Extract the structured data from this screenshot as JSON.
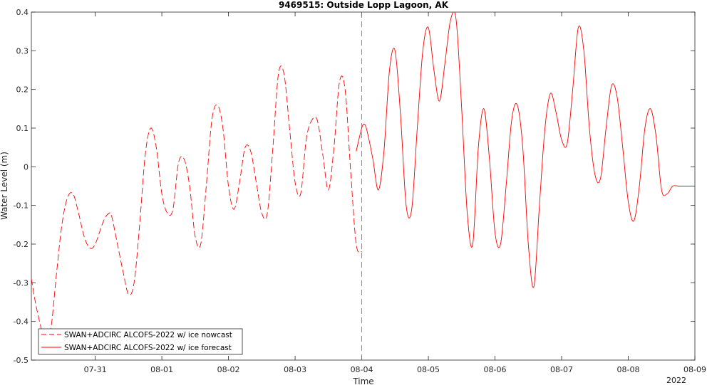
{
  "chart_data": {
    "type": "line",
    "title": "9469515: Outside Lopp Lagoon, AK",
    "xlabel": "Time",
    "ylabel": "Water Level (m)",
    "year_label": "2022",
    "xlim": [
      "07-30 01:00",
      "08-09 00:00"
    ],
    "ylim": [
      -0.5,
      0.4
    ],
    "yticks": [
      "-0.5",
      "-0.4",
      "-0.3",
      "-0.2",
      "-0.1",
      "0",
      "0.1",
      "0.2",
      "0.3",
      "0.4"
    ],
    "xticks": [
      "07-31",
      "08-01",
      "08-02",
      "08-03",
      "08-04",
      "08-05",
      "08-06",
      "08-07",
      "08-08",
      "08-09"
    ],
    "nowcast_end": "08-04",
    "grid": false,
    "legend_position": "bottom-left",
    "series": [
      {
        "name": "SWAN+ADCIRC ALCOFS-2022 w/ ice nowcast",
        "color": "#ff0000",
        "style": "dashed",
        "x": [
          "07-30 01:00",
          "07-30 03:00",
          "07-30 06:00",
          "07-30 08:00",
          "07-30 10:00",
          "07-30 12:00",
          "07-30 14:00",
          "07-30 16:00",
          "07-30 18:00",
          "07-30 20:00",
          "07-30 22:00",
          "07-31 00:00",
          "07-31 03:00",
          "07-31 05:00",
          "07-31 06:00",
          "07-31 08:00",
          "07-31 10:00",
          "07-31 12:00",
          "07-31 14:00",
          "07-31 16:00",
          "07-31 18:00",
          "07-31 20:00",
          "07-31 22:00",
          "08-01 00:00",
          "08-01 02:00",
          "08-01 04:00",
          "08-01 06:00",
          "08-01 08:00",
          "08-01 10:00",
          "08-01 12:00",
          "08-01 14:00",
          "08-01 16:00",
          "08-01 18:00",
          "08-01 20:00",
          "08-01 22:00",
          "08-02 00:00",
          "08-02 02:00",
          "08-02 04:00",
          "08-02 06:00",
          "08-02 08:00",
          "08-02 10:00",
          "08-02 12:00",
          "08-02 14:00",
          "08-02 16:00",
          "08-02 18:00",
          "08-02 20:00",
          "08-02 22:00",
          "08-03 00:00",
          "08-03 02:00",
          "08-03 04:00",
          "08-03 06:00",
          "08-03 08:00",
          "08-03 10:00",
          "08-03 12:00",
          "08-03 14:00",
          "08-03 16:00",
          "08-03 18:00",
          "08-03 20:00",
          "08-03 22:00",
          "08-04 00:00"
        ],
        "y": [
          -0.29,
          -0.37,
          -0.45,
          -0.42,
          -0.28,
          -0.15,
          -0.08,
          -0.07,
          -0.12,
          -0.18,
          -0.21,
          -0.2,
          -0.14,
          -0.12,
          -0.13,
          -0.2,
          -0.27,
          -0.33,
          -0.3,
          -0.15,
          0.03,
          0.1,
          0.05,
          -0.07,
          -0.12,
          -0.11,
          0.01,
          0.02,
          -0.05,
          -0.18,
          -0.2,
          -0.05,
          0.12,
          0.16,
          0.1,
          -0.05,
          -0.11,
          -0.04,
          0.05,
          0.04,
          -0.04,
          -0.12,
          -0.12,
          0.05,
          0.24,
          0.24,
          0.1,
          -0.04,
          -0.07,
          0.07,
          0.12,
          0.12,
          0.03,
          -0.06,
          0.05,
          0.22,
          0.2,
          -0.01,
          -0.2,
          -0.22
        ]
      },
      {
        "name": "SWAN+ADCIRC ALCOFS-2022 w/ ice forecast",
        "color": "#ff0000",
        "style": "solid",
        "x": [
          "08-03 22:00",
          "08-04 00:00",
          "08-04 01:00",
          "08-04 02:00",
          "08-04 04:00",
          "08-04 06:00",
          "08-04 08:00",
          "08-04 10:00",
          "08-04 12:00",
          "08-04 14:00",
          "08-04 16:00",
          "08-04 18:00",
          "08-04 20:00",
          "08-04 22:00",
          "08-05 00:00",
          "08-05 02:00",
          "08-05 04:00",
          "08-05 06:00",
          "08-05 08:00",
          "08-05 10:00",
          "08-05 12:00",
          "08-05 14:00",
          "08-05 16:00",
          "08-05 18:00",
          "08-05 20:00",
          "08-05 22:00",
          "08-06 00:00",
          "08-06 02:00",
          "08-06 04:00",
          "08-06 06:00",
          "08-06 08:00",
          "08-06 10:00",
          "08-06 12:00",
          "08-06 14:00",
          "08-06 16:00",
          "08-06 18:00",
          "08-06 20:00",
          "08-06 22:00",
          "08-07 00:00",
          "08-07 02:00",
          "08-07 04:00",
          "08-07 06:00",
          "08-07 08:00",
          "08-07 10:00",
          "08-07 12:00",
          "08-07 14:00",
          "08-07 16:00",
          "08-07 18:00",
          "08-07 20:00",
          "08-07 22:00",
          "08-08 00:00",
          "08-08 02:00",
          "08-08 04:00",
          "08-08 06:00",
          "08-08 08:00",
          "08-08 10:00",
          "08-08 12:00",
          "08-08 14:00",
          "08-08 16:00",
          "08-08 18:00",
          "08-08 20:00",
          "08-08 22:00",
          "08-09 00:00"
        ],
        "y": [
          0.04,
          0.1,
          0.11,
          0.09,
          0.02,
          -0.06,
          0.04,
          0.25,
          0.3,
          0.13,
          -0.1,
          -0.11,
          0.1,
          0.3,
          0.36,
          0.25,
          0.17,
          0.27,
          0.38,
          0.38,
          0.15,
          -0.12,
          -0.2,
          0.05,
          0.15,
          0.02,
          -0.17,
          -0.2,
          -0.05,
          0.12,
          0.16,
          0.05,
          -0.2,
          -0.31,
          -0.1,
          0.1,
          0.19,
          0.14,
          0.07,
          0.06,
          0.2,
          0.36,
          0.3,
          0.1,
          -0.02,
          -0.03,
          0.1,
          0.21,
          0.18,
          0.05,
          -0.09,
          -0.14,
          -0.05,
          0.1,
          0.15,
          0.08,
          -0.06,
          -0.07,
          -0.05,
          -0.05,
          -0.05,
          -0.05,
          -0.05
        ]
      }
    ]
  }
}
